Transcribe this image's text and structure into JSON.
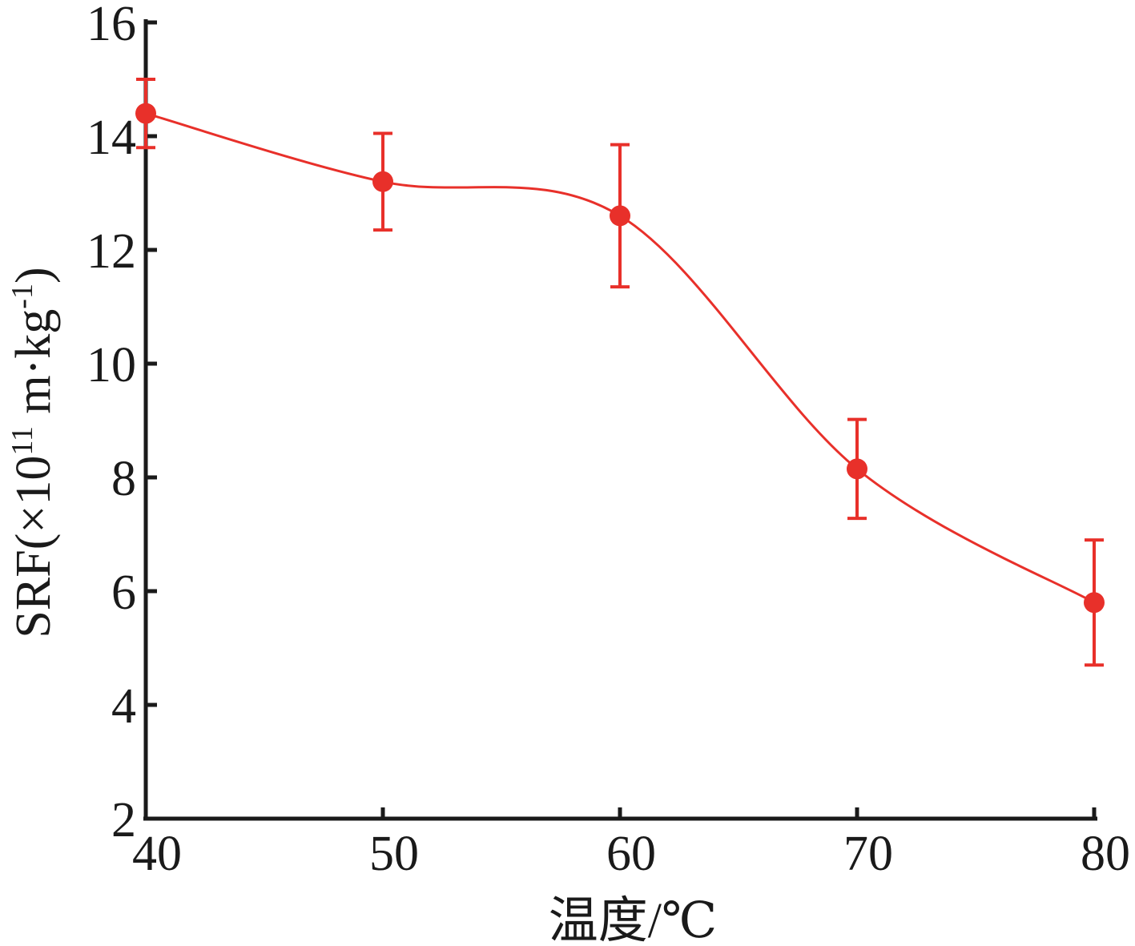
{
  "chart_data": {
    "type": "line",
    "xlabel": "温度/℃",
    "ylabel_parts": {
      "prefix": "SRF(×10",
      "sup1": "11",
      "middle": " m·kg",
      "sup2": "-1",
      "suffix": ")"
    },
    "x_ticks": [
      40,
      50,
      60,
      70,
      80
    ],
    "y_ticks": [
      2,
      4,
      6,
      8,
      10,
      12,
      14,
      16
    ],
    "xlim": [
      40,
      80
    ],
    "ylim": [
      2,
      16
    ],
    "grid": false,
    "series": [
      {
        "color": "#e8302a",
        "x": [
          40,
          50,
          60,
          70,
          80
        ],
        "y": [
          14.4,
          13.2,
          12.6,
          8.15,
          5.8
        ],
        "error": [
          0.6,
          0.85,
          1.25,
          0.87,
          1.1
        ]
      }
    ]
  }
}
